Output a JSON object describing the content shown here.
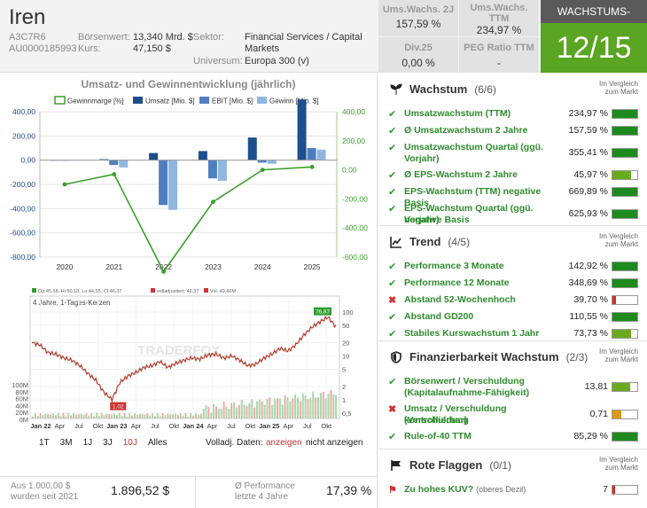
{
  "company": {
    "name": "Iren",
    "wkn": "A3C7R6",
    "isin": "AU0000185993",
    "market_cap_label": "Börsenwert:",
    "market_cap": "13,340 Mrd. $",
    "price_label": "Kurs:",
    "price": "47,150 $",
    "sector_label": "Sektor:",
    "sector_line1": "Financial Services / Capital",
    "sector_line2": "Markets",
    "universe_label": "Universum:",
    "universe": "Europa 300 (v)"
  },
  "kpis": [
    {
      "label_line1": "Ums.Wachs. 2J",
      "label_line2": "",
      "value": "157,59 %"
    },
    {
      "label_line1": "Ums.Wachs.",
      "label_line2": "TTM",
      "value": "234,97 %"
    },
    {
      "label_line1": "Div.25",
      "label_line2": "",
      "value": "0,00 %"
    },
    {
      "label_line1": "PEG Ratio TTM",
      "label_line2": "",
      "value": "-"
    }
  ],
  "check": {
    "header": "WACHSTUMS-CHECK",
    "score": "12/15"
  },
  "chart_data": [
    {
      "type": "bar",
      "title": "Umsatz- und Gewinnentwicklung (jährlich)",
      "categories": [
        "2020",
        "2021",
        "2022",
        "2023",
        "2024",
        "2025"
      ],
      "legend": [
        "Gewinnmarge [%]",
        "Umsatz [Mio. $]",
        "EBIT [Mio. $]",
        "Gewinn [Mio. $]"
      ],
      "series": [
        {
          "name": "Umsatz [Mio. $]",
          "color": "#1f4e8c",
          "values": [
            0,
            8,
            59,
            75,
            187,
            501
          ]
        },
        {
          "name": "EBIT [Mio. $]",
          "color": "#4f7fbf",
          "values": [
            0,
            -40,
            -370,
            -150,
            -20,
            100
          ]
        },
        {
          "name": "Gewinn [Mio. $]",
          "color": "#8fb7e0",
          "values": [
            0,
            -60,
            -410,
            -170,
            -30,
            87
          ]
        },
        {
          "name": "Gewinnmarge [%]",
          "color": "#3aa02a",
          "values": [
            -100,
            -30,
            -700,
            -220,
            0,
            20
          ]
        }
      ],
      "y_left_ticks": [
        "400,00",
        "200,00",
        "0,00",
        "-200,00",
        "-400,00",
        "-600,00",
        "-800,00"
      ],
      "y_right_ticks": [
        "400,00",
        "200,00",
        "0,00",
        "-200,00",
        "-400,00",
        "-600,00"
      ],
      "ylim_left": [
        -800,
        400
      ],
      "ylim_right": [
        -600,
        400
      ]
    },
    {
      "type": "line",
      "title": "4 Jahre, 1-Tages-Kerzen",
      "watermark": "TRADERFOX",
      "indicator_labels": [
        "Op:45,68, Hi:50,18, Lo:44,55, CI:46,37",
        "volladjustiert: 46,37",
        "Vol: 49,66M"
      ],
      "x_ticks": [
        "Jan 22",
        "Apr",
        "Jul",
        "Okt",
        "Jan 23",
        "Apr",
        "Jul",
        "Okt",
        "Jan 24",
        "Apr",
        "Jul",
        "Okt",
        "Jan 25",
        "Apr",
        "Jul",
        "Okt"
      ],
      "y_right_ticks": [
        "100",
        "50",
        "20",
        "10",
        "5",
        "2",
        "1",
        "0,5"
      ],
      "y_left_ticks": [
        "100M",
        "80M",
        "60M",
        "40M",
        "20M",
        "0M"
      ],
      "high_label": "76,87",
      "low_label": "1,02",
      "y_scale": "log",
      "ylim": [
        0.5,
        100
      ],
      "approx_closes": [
        20,
        18,
        12,
        11,
        9,
        8,
        6,
        4,
        2.8,
        1.5,
        1.02,
        2.5,
        3.5,
        4.2,
        5.5,
        6,
        7.5,
        5.5,
        6.8,
        8,
        9,
        8.5,
        10.5,
        11,
        9,
        10,
        8,
        6,
        6.5,
        9,
        11,
        15,
        13,
        18,
        30,
        45,
        60,
        76.87,
        46.37
      ]
    }
  ],
  "range_buttons": [
    "1T",
    "3M",
    "1J",
    "3J",
    "10J",
    "Alles"
  ],
  "range_active": "10J",
  "adjusted": {
    "label": "Volladj. Daten:",
    "on": "anzeigen",
    "off": "nicht anzeigen"
  },
  "bottom": {
    "invest_label1": "Aus 1.000,00 $",
    "invest_label2": "wurden seit 2021",
    "invest_value": "1.896,52 $",
    "perf_label1": "Ø Performance",
    "perf_label2": "letzte 4 Jahre",
    "perf_value": "17,39 %"
  },
  "comparison_label_line1": "Im Vergleich",
  "comparison_label_line2": "zum Markt",
  "sections": [
    {
      "title": "Wachstum",
      "count": "(6/6)",
      "icon": "sprout-icon",
      "rows": [
        {
          "label1": "Umsatzwachstum (TTM)",
          "label2": "",
          "value": "234,97 %",
          "mark": "check",
          "fill": 1.0,
          "color": "#1e8a1e"
        },
        {
          "label1": "Ø Umsatzwachstum 2 Jahre",
          "label2": "",
          "value": "157,59 %",
          "mark": "check",
          "fill": 1.0,
          "color": "#1e8a1e"
        },
        {
          "label1": "Umsatzwachstum Quartal (ggü.",
          "label2": "Vorjahr)",
          "value": "355,41 %",
          "mark": "check",
          "fill": 1.0,
          "color": "#1e8a1e"
        },
        {
          "label1": "Ø EPS-Wachstum 2 Jahre",
          "label2": "",
          "value": "45,97 %",
          "mark": "check",
          "fill": 0.75,
          "color": "#6aab1e"
        },
        {
          "label1": "EPS-Wachstum (TTM) negative Basis",
          "label2": "",
          "value": "669,89 %",
          "mark": "check",
          "fill": 1.0,
          "color": "#1e8a1e"
        },
        {
          "label1": "EPS-Wachstum Quartal (ggü. Vorjahr)",
          "label2": "negative Basis",
          "value": "625,93 %",
          "mark": "check",
          "fill": 1.0,
          "color": "#1e8a1e"
        }
      ]
    },
    {
      "title": "Trend",
      "count": "(4/5)",
      "icon": "trend-chart-icon",
      "rows": [
        {
          "label1": "Performance 3 Monate",
          "label2": "",
          "value": "142,92 %",
          "mark": "check",
          "fill": 1.0,
          "color": "#1e8a1e"
        },
        {
          "label1": "Performance 12 Monate",
          "label2": "",
          "value": "348,69 %",
          "mark": "check",
          "fill": 1.0,
          "color": "#1e8a1e"
        },
        {
          "label1": "Abstand 52-Wochenhoch",
          "label2": "",
          "value": "39,70 %",
          "mark": "x",
          "fill": 0.15,
          "color": "#d0312d"
        },
        {
          "label1": "Abstand GD200",
          "label2": "",
          "value": "110,55 %",
          "mark": "check",
          "fill": 1.0,
          "color": "#1e8a1e"
        },
        {
          "label1": "Stabiles Kurswachstum 1 Jahr",
          "label2": "",
          "value": "73,73 %",
          "mark": "check",
          "fill": 0.75,
          "color": "#6aab1e"
        }
      ]
    },
    {
      "title": "Finanzierbarkeit Wachstum",
      "count": "(2/3)",
      "icon": "shield-icon",
      "rows": [
        {
          "label1": "Börsenwert / Verschuldung",
          "label2": "(Kapitalaufnahme-Fähigkeit)",
          "value": "13,81",
          "mark": "check",
          "fill": 0.7,
          "color": "#6aab1e"
        },
        {
          "label1": "Umsatz / Verschuldung (Verschuldung",
          "label2": "kontrollierbar)",
          "value": "0,71",
          "mark": "x",
          "fill": 0.35,
          "color": "#d89a16"
        },
        {
          "label1": "Rule-of-40 TTM",
          "label2": "",
          "value": "85,29 %",
          "mark": "check",
          "fill": 1.0,
          "color": "#1e8a1e"
        }
      ]
    },
    {
      "title": "Rote Flaggen",
      "count": "(0/1)",
      "icon": "flag-icon",
      "rows": [
        {
          "label1": "Zu hohes KUV?",
          "label2": "",
          "note": "(oberes Dezil)",
          "value": "7",
          "mark": "flag",
          "fill": 0.1,
          "color": "#d0312d"
        }
      ]
    }
  ]
}
